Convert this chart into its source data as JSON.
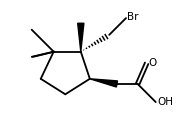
{
  "bg_color": "#ffffff",
  "line_color": "#000000",
  "lw": 1.3,
  "text_Br": "Br",
  "text_O": "O",
  "text_OH": "OH",
  "fs": 7.5,
  "xlim": [
    -0.5,
    5.8
  ],
  "ylim": [
    0.0,
    4.8
  ]
}
